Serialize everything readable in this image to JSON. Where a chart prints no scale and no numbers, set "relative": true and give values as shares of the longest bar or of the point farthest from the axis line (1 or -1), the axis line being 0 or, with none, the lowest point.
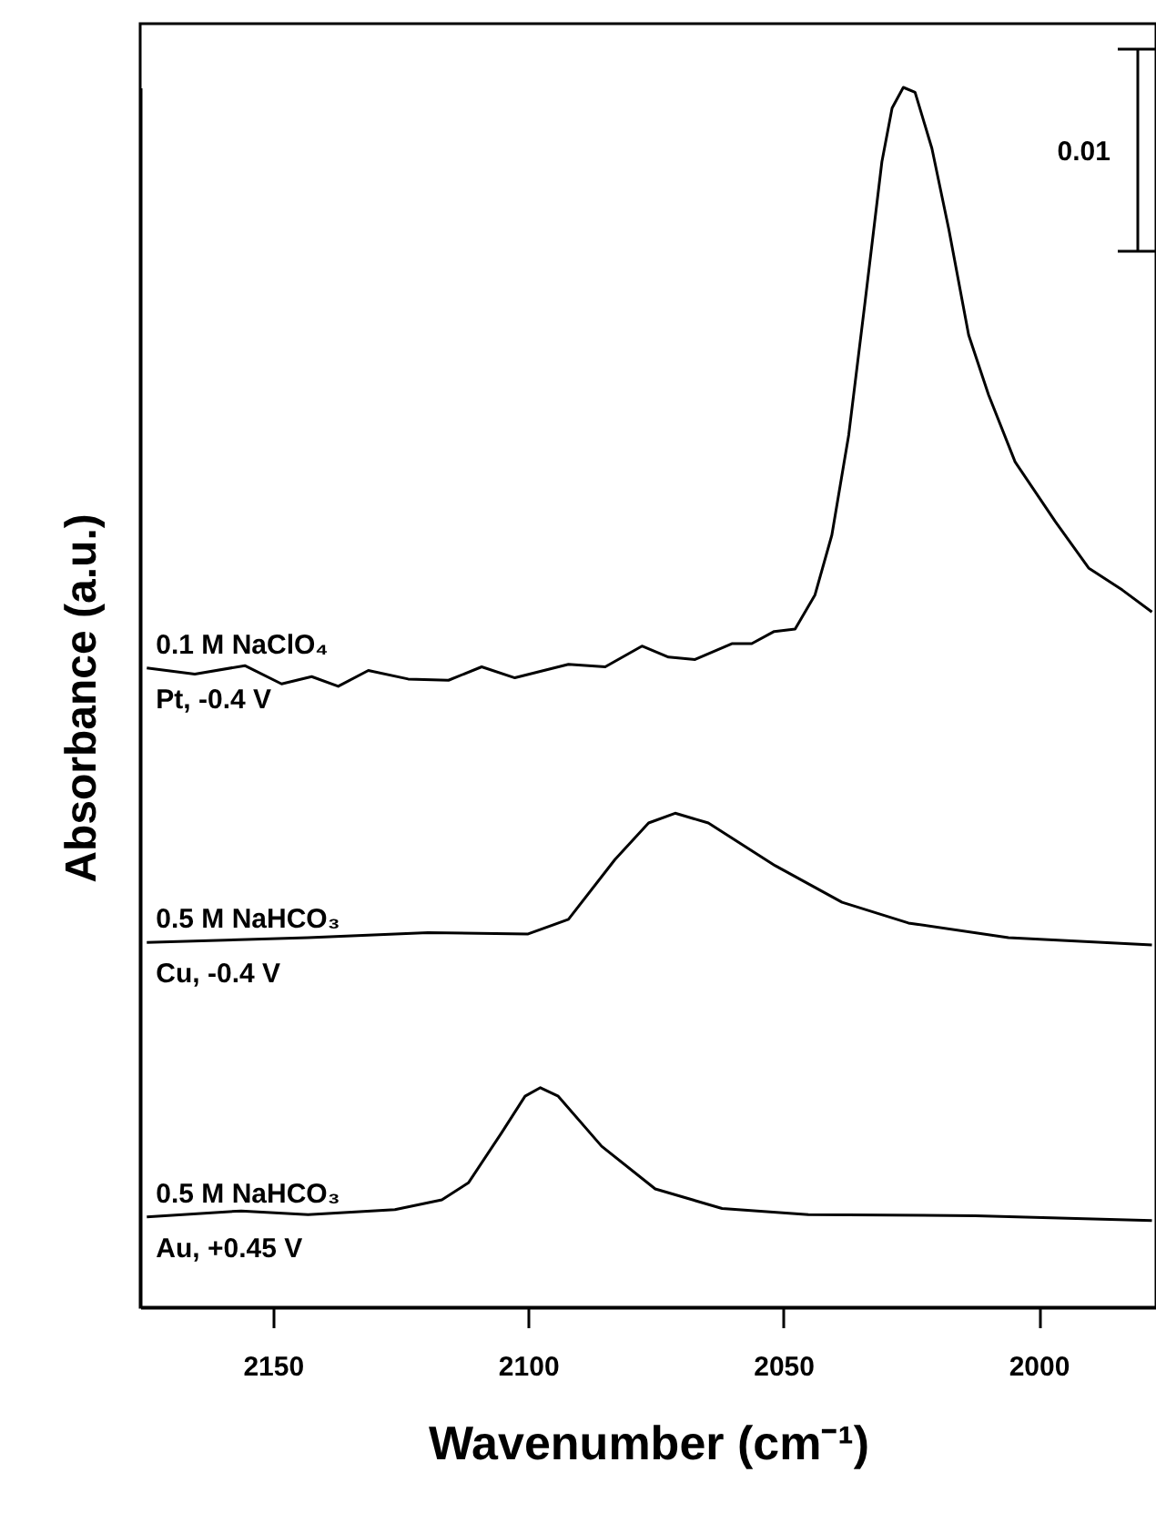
{
  "chart_data": {
    "type": "line",
    "relative": true,
    "xlabel": "Wavenumber (cm⁻¹)",
    "ylabel": "Absorbance (a.u.)",
    "xlim": [
      2176,
      1977
    ],
    "xticks": [
      2150,
      2100,
      2050,
      2000
    ],
    "grid": false,
    "marker": "none",
    "line_style": "solid",
    "tick_labels": "x",
    "series": [
      {
        "color": "#000000",
        "x": [
          2174.7,
          2165.3,
          2155.5,
          2148.3,
          2142.4,
          2137.2,
          2131.3,
          2123.5,
          2115.6,
          2109.1,
          2102.6,
          2092.1,
          2084.9,
          2077.7,
          2072.5,
          2067.3,
          2060.1,
          2056.2,
          2051.8,
          2047.7,
          2043.8,
          2040.5,
          2037.2,
          2034.0,
          2030.7,
          2028.7,
          2026.5,
          2024.2,
          2020.9,
          2017.6,
          2013.7,
          2009.8,
          2004.6,
          1996.7,
          1990.2,
          1983.6,
          1977.8
        ],
        "values": [
          0.524,
          0.519,
          0.526,
          0.511,
          0.517,
          0.509,
          0.522,
          0.515,
          0.514,
          0.525,
          0.516,
          0.527,
          0.525,
          0.542,
          0.533,
          0.531,
          0.544,
          0.544,
          0.554,
          0.556,
          0.584,
          0.633,
          0.715,
          0.824,
          0.939,
          0.983,
          1.0,
          0.996,
          0.95,
          0.884,
          0.797,
          0.748,
          0.693,
          0.644,
          0.606,
          0.588,
          0.57
        ]
      },
      {
        "color": "#000000",
        "x": [
          2174.7,
          2143.1,
          2119.6,
          2100.0,
          2092.1,
          2083.0,
          2076.4,
          2071.2,
          2064.7,
          2051.6,
          2038.5,
          2025.5,
          2005.9,
          1977.8
        ],
        "values": [
          0.299,
          0.303,
          0.307,
          0.306,
          0.318,
          0.367,
          0.397,
          0.405,
          0.397,
          0.362,
          0.332,
          0.315,
          0.303,
          0.297
        ]
      },
      {
        "color": "#000000",
        "x": [
          2174.7,
          2156.2,
          2143.1,
          2126.1,
          2116.9,
          2111.7,
          2105.2,
          2100.6,
          2097.6,
          2094.1,
          2085.6,
          2075.1,
          2062.0,
          2045.1,
          2012.4,
          1977.8
        ],
        "values": [
          0.074,
          0.079,
          0.076,
          0.08,
          0.088,
          0.102,
          0.143,
          0.173,
          0.18,
          0.173,
          0.132,
          0.097,
          0.081,
          0.076,
          0.075,
          0.071
        ]
      }
    ],
    "annotations": [
      "0.1 M NaClO₄",
      "Pt, -0.4 V",
      "0.5 M NaHCO₃",
      "Cu, -0.4 V",
      "0.5 M NaHCO₃",
      "Au, +0.45 V",
      "0.01"
    ]
  }
}
